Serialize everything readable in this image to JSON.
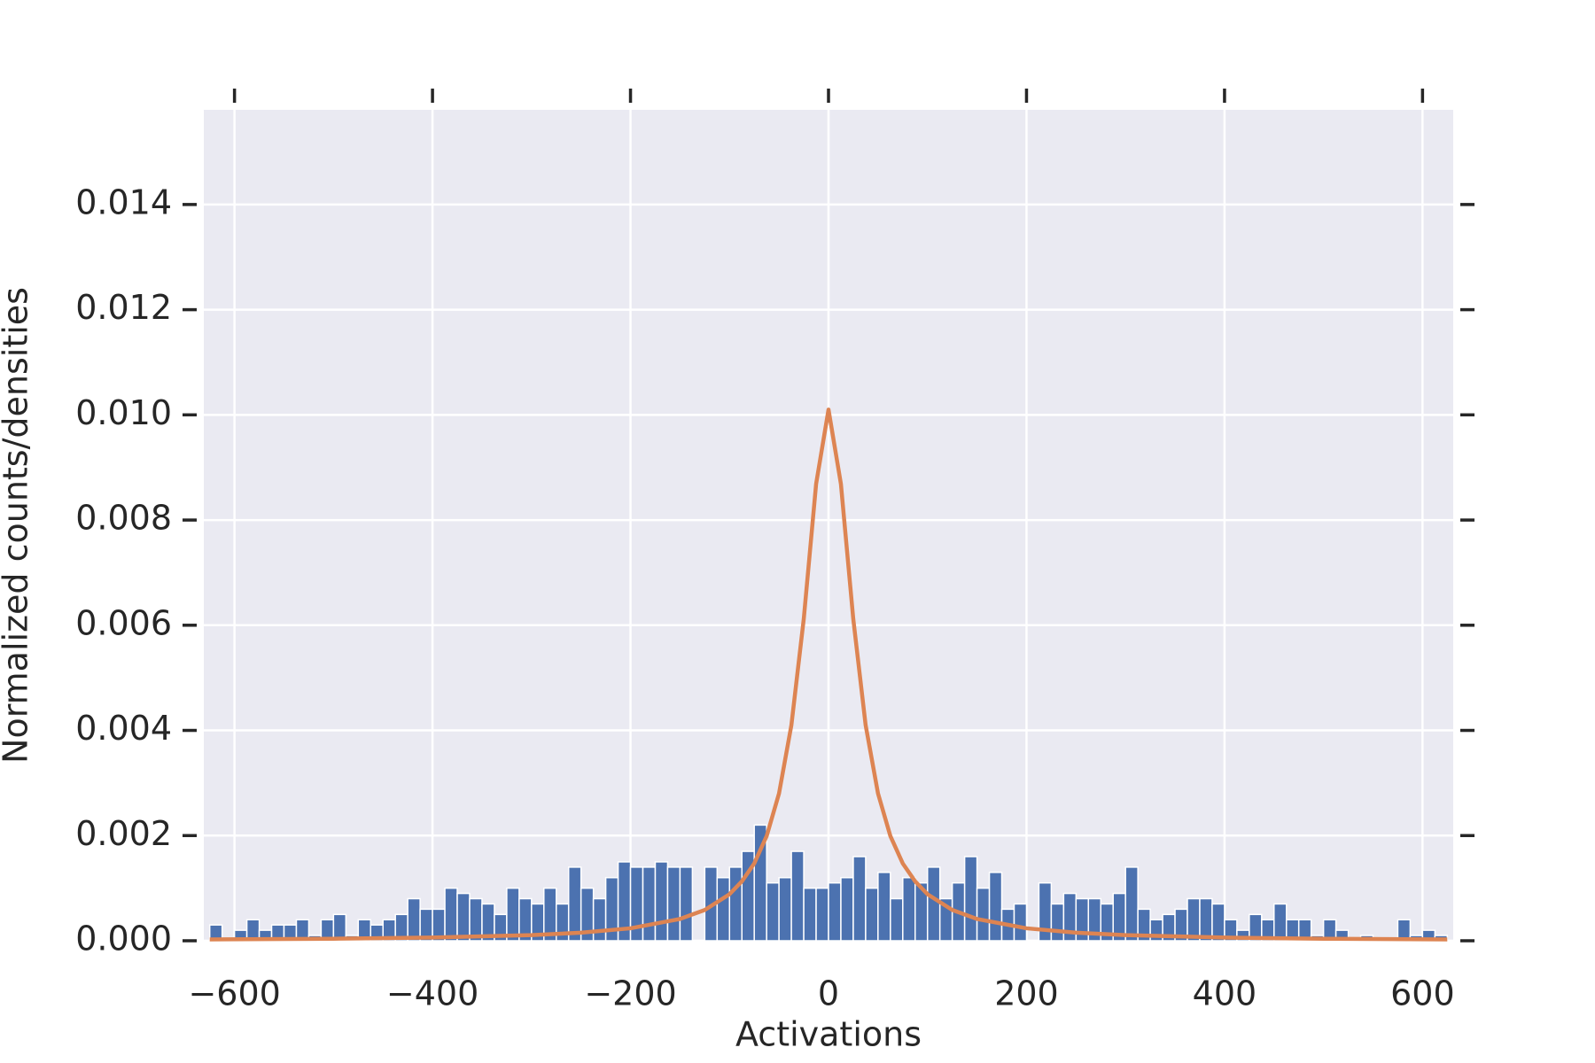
{
  "chart_data": {
    "type": "histogram",
    "xlabel": "Activations",
    "ylabel": "Normalized counts/densities",
    "bins": [
      -625,
      -612.5,
      -600,
      -587.5,
      -575,
      -562.5,
      -550,
      -537.5,
      -525,
      -512.5,
      -500,
      -487.5,
      -475,
      -462.5,
      -450,
      -437.5,
      -425,
      -412.5,
      -400,
      -387.5,
      -375,
      -362.5,
      -350,
      -337.5,
      -325,
      -312.5,
      -300,
      -287.5,
      -275,
      -262.5,
      -250,
      -237.5,
      -225,
      -212.5,
      -200,
      -187.5,
      -175,
      -162.5,
      -150,
      -137.5,
      -125,
      -112.5,
      -100,
      -87.5,
      -75,
      -62.5,
      -50,
      -37.5,
      -25,
      -12.5,
      0,
      12.5,
      25,
      37.5,
      50,
      62.5,
      75,
      87.5,
      100,
      112.5,
      125,
      137.5,
      150,
      162.5,
      175,
      187.5,
      200,
      212.5,
      225,
      237.5,
      250,
      262.5,
      275,
      287.5,
      300,
      312.5,
      325,
      337.5,
      350,
      362.5,
      375,
      387.5,
      400,
      412.5,
      425,
      437.5,
      450,
      462.5,
      475,
      487.5,
      500,
      512.5,
      525,
      537.5,
      550,
      562.5,
      575,
      587.5,
      600,
      612.5,
      625
    ],
    "values": [
      0.0003,
      0.0,
      0.0002,
      0.0004,
      0.0002,
      0.0003,
      0.0003,
      0.0004,
      0.0001,
      0.0004,
      0.0005,
      0.0001,
      0.0004,
      0.0003,
      0.0004,
      0.0005,
      0.0008,
      0.0006,
      0.0006,
      0.001,
      0.0009,
      0.0008,
      0.0007,
      0.0005,
      0.001,
      0.0008,
      0.0007,
      0.001,
      0.0007,
      0.0014,
      0.001,
      0.0008,
      0.0012,
      0.0015,
      0.0014,
      0.0014,
      0.0015,
      0.0014,
      0.0014,
      0.0,
      0.0014,
      0.0012,
      0.0014,
      0.0017,
      0.0022,
      0.0011,
      0.0012,
      0.0017,
      0.001,
      0.001,
      0.0011,
      0.0012,
      0.0016,
      0.001,
      0.0013,
      0.0008,
      0.0012,
      0.0011,
      0.0014,
      0.0008,
      0.0011,
      0.0016,
      0.001,
      0.0013,
      0.0006,
      0.0007,
      0.0,
      0.0011,
      0.0007,
      0.0009,
      0.0008,
      0.0008,
      0.0007,
      0.0009,
      0.0014,
      0.0006,
      0.0004,
      0.0005,
      0.0006,
      0.0008,
      0.0008,
      0.0007,
      0.0004,
      0.0002,
      0.0005,
      0.0004,
      0.0007,
      0.0004,
      0.0004,
      0.0001,
      0.0004,
      0.0002,
      0.0,
      0.0001,
      0.0,
      0.0,
      0.0004,
      0.0001,
      0.0002,
      0.0001
    ],
    "color": "#4c72b0",
    "line": {
      "x": [
        -625,
        -500,
        -400,
        -300,
        -250,
        -200,
        -150,
        -125,
        -100,
        -87.5,
        -75,
        -62.5,
        -50,
        -37.5,
        -25,
        -12.5,
        0,
        12.5,
        25,
        37.5,
        50,
        62.5,
        75,
        87.5,
        100,
        125,
        150,
        200,
        250,
        300,
        400,
        500,
        625
      ],
      "values": [
        2.48e-05,
        3.87e-05,
        6.03e-05,
        0.000107,
        0.000153,
        0.000237,
        0.000414,
        0.000585,
        0.000885,
        0.00113,
        0.00147,
        0.00199,
        0.0028,
        0.0041,
        0.00612,
        0.00869,
        0.0101,
        0.00869,
        0.00612,
        0.0041,
        0.0028,
        0.00199,
        0.00147,
        0.00113,
        0.000885,
        0.000585,
        0.000414,
        0.000237,
        0.000153,
        0.000107,
        6.03e-05,
        3.87e-05,
        2.48e-05
      ],
      "color": "#dd8452"
    },
    "xlim": [
      -631,
      631
    ],
    "ylim": [
      0,
      0.0158
    ],
    "xticks": [
      {
        "value": -600,
        "label": "−600"
      },
      {
        "value": -400,
        "label": "−400"
      },
      {
        "value": -200,
        "label": "−200"
      },
      0,
      200,
      400,
      600
    ],
    "yticks": [
      {
        "value": 0,
        "label": "0.000"
      },
      {
        "value": 0.002,
        "label": "0.002"
      },
      {
        "value": 0.004,
        "label": "0.004"
      },
      {
        "value": 0.006,
        "label": "0.006"
      },
      {
        "value": 0.008,
        "label": "0.008"
      },
      {
        "value": 0.01,
        "label": "0.010"
      },
      {
        "value": 0.012,
        "label": "0.012"
      },
      {
        "value": 0.014,
        "label": "0.014"
      }
    ],
    "grid": true
  }
}
